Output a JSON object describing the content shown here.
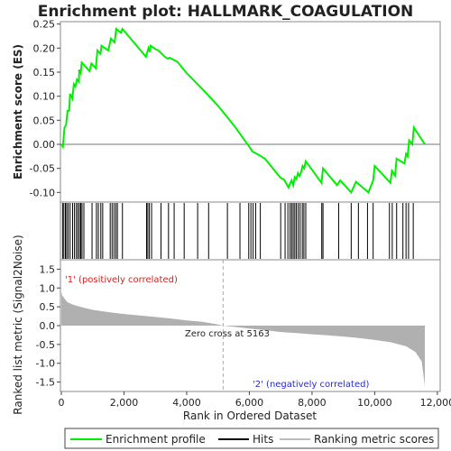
{
  "chart_data": {
    "type": "line",
    "title": "Enrichment plot: HALLMARK_COAGULATION",
    "xlabel": "Rank in Ordered Dataset",
    "xlim": [
      0,
      12000
    ],
    "x_ticks": [
      "0",
      "2,000",
      "4,000",
      "6,000",
      "8,000",
      "10,000",
      "12,000"
    ],
    "n_genes": 11600,
    "top_panel": {
      "ylabel": "Enrichment score (ES)",
      "ylim": [
        -0.12,
        0.255
      ],
      "y_ticks": [
        "-0.10",
        "-0.05",
        "0.00",
        "0.05",
        "0.10",
        "0.15",
        "0.20",
        "0.25"
      ],
      "series": [
        {
          "name": "Enrichment profile",
          "color": "#00ee00",
          "points": [
            [
              0,
              0.0
            ],
            [
              50,
              -0.005
            ],
            [
              100,
              0.035
            ],
            [
              150,
              0.04
            ],
            [
              200,
              0.07
            ],
            [
              250,
              0.07
            ],
            [
              280,
              0.105
            ],
            [
              350,
              0.095
            ],
            [
              400,
              0.125
            ],
            [
              450,
              0.12
            ],
            [
              500,
              0.135
            ],
            [
              560,
              0.13
            ],
            [
              570,
              0.155
            ],
            [
              620,
              0.148
            ],
            [
              650,
              0.17
            ],
            [
              900,
              0.152
            ],
            [
              960,
              0.168
            ],
            [
              1100,
              0.158
            ],
            [
              1150,
              0.195
            ],
            [
              1250,
              0.188
            ],
            [
              1280,
              0.205
            ],
            [
              1500,
              0.195
            ],
            [
              1580,
              0.22
            ],
            [
              1700,
              0.212
            ],
            [
              1750,
              0.24
            ],
            [
              1900,
              0.232
            ],
            [
              1950,
              0.24
            ],
            [
              2700,
              0.182
            ],
            [
              2780,
              0.2
            ],
            [
              2820,
              0.192
            ],
            [
              2850,
              0.205
            ],
            [
              3000,
              0.198
            ],
            [
              3100,
              0.195
            ],
            [
              3300,
              0.182
            ],
            [
              3400,
              0.178
            ],
            [
              3450,
              0.18
            ],
            [
              3700,
              0.172
            ],
            [
              4000,
              0.148
            ],
            [
              4500,
              0.115
            ],
            [
              5000,
              0.08
            ],
            [
              5500,
              0.04
            ],
            [
              6000,
              -0.005
            ],
            [
              6100,
              -0.015
            ],
            [
              6300,
              -0.022
            ],
            [
              6500,
              -0.03
            ],
            [
              7000,
              -0.07
            ],
            [
              7100,
              -0.073
            ],
            [
              7150,
              -0.078
            ],
            [
              7250,
              -0.09
            ],
            [
              7300,
              -0.082
            ],
            [
              7350,
              -0.075
            ],
            [
              7400,
              -0.085
            ],
            [
              7450,
              -0.068
            ],
            [
              7500,
              -0.072
            ],
            [
              7550,
              -0.06
            ],
            [
              7600,
              -0.066
            ],
            [
              7650,
              -0.058
            ],
            [
              7700,
              -0.045
            ],
            [
              7750,
              -0.05
            ],
            [
              7800,
              -0.035
            ],
            [
              8300,
              -0.08
            ],
            [
              8350,
              -0.05
            ],
            [
              8800,
              -0.085
            ],
            [
              8900,
              -0.075
            ],
            [
              9250,
              -0.1
            ],
            [
              9400,
              -0.078
            ],
            [
              9800,
              -0.1
            ],
            [
              9950,
              -0.075
            ],
            [
              10000,
              -0.045
            ],
            [
              10500,
              -0.08
            ],
            [
              10550,
              -0.055
            ],
            [
              10650,
              -0.065
            ],
            [
              10700,
              -0.03
            ],
            [
              10950,
              -0.04
            ],
            [
              11000,
              -0.02
            ],
            [
              11050,
              -0.025
            ],
            [
              11100,
              0.008
            ],
            [
              11200,
              0.0
            ],
            [
              11250,
              0.035
            ],
            [
              11600,
              0.0
            ]
          ]
        }
      ],
      "hit_ranks": [
        40,
        80,
        130,
        170,
        220,
        280,
        360,
        420,
        480,
        530,
        580,
        620,
        660,
        720,
        980,
        1120,
        1180,
        1260,
        1320,
        1560,
        1620,
        1680,
        1740,
        1790,
        1950,
        2720,
        2760,
        2810,
        2880,
        3180,
        3420,
        3600,
        3920,
        4350,
        4700,
        5300,
        5700,
        5980,
        6050,
        6120,
        6200,
        6350,
        7000,
        7140,
        7230,
        7300,
        7350,
        7400,
        7450,
        7500,
        7560,
        7620,
        7690,
        7740,
        7800,
        8310,
        8350,
        8850,
        9250,
        9480,
        9770,
        9950,
        10470,
        10560,
        10700,
        10900,
        11000,
        11080,
        11230
      ]
    },
    "bottom_panel": {
      "ylabel": "Ranked list metric (Signal2Noise)",
      "ylim": [
        -1.75,
        1.75
      ],
      "y_ticks": [
        "-1.5",
        "-1.0",
        "-0.5",
        "0.0",
        "0.5",
        "1.0",
        "1.5"
      ],
      "metric_curve": [
        [
          0,
          0.9
        ],
        [
          30,
          0.8
        ],
        [
          100,
          0.72
        ],
        [
          200,
          0.62
        ],
        [
          400,
          0.55
        ],
        [
          700,
          0.48
        ],
        [
          1000,
          0.42
        ],
        [
          1500,
          0.36
        ],
        [
          2000,
          0.31
        ],
        [
          2500,
          0.27
        ],
        [
          3000,
          0.23
        ],
        [
          3500,
          0.19
        ],
        [
          4000,
          0.14
        ],
        [
          4500,
          0.1
        ],
        [
          5000,
          0.03
        ],
        [
          5163,
          0.0
        ],
        [
          5500,
          -0.03
        ],
        [
          6000,
          -0.08
        ],
        [
          6500,
          -0.12
        ],
        [
          7000,
          -0.17
        ],
        [
          7500,
          -0.2
        ],
        [
          8000,
          -0.23
        ],
        [
          8500,
          -0.26
        ],
        [
          9000,
          -0.29
        ],
        [
          9500,
          -0.33
        ],
        [
          10000,
          -0.38
        ],
        [
          10500,
          -0.44
        ],
        [
          11000,
          -0.55
        ],
        [
          11300,
          -0.7
        ],
        [
          11500,
          -0.95
        ],
        [
          11600,
          -1.6
        ]
      ],
      "zero_cross": 5163,
      "annotations": {
        "zero_label": "Zero cross at 5163",
        "pos_label": "'1' (positively correlated)",
        "neg_label": "'2' (negatively correlated)"
      }
    },
    "legend": {
      "placement": "bottom",
      "items": [
        {
          "label": "Enrichment profile",
          "color": "#00ee00"
        },
        {
          "label": "Hits",
          "color": "#000000"
        },
        {
          "label": "Ranking metric scores",
          "color": "#bbbbbb"
        }
      ]
    },
    "colors": {
      "profile": "#00ee00",
      "hits": "#000000",
      "metric_fill": "#b0b0b0",
      "bar_start": "#e81b1b",
      "bar_mid": "#ffffff",
      "bar_end": "#1a00cc"
    }
  }
}
